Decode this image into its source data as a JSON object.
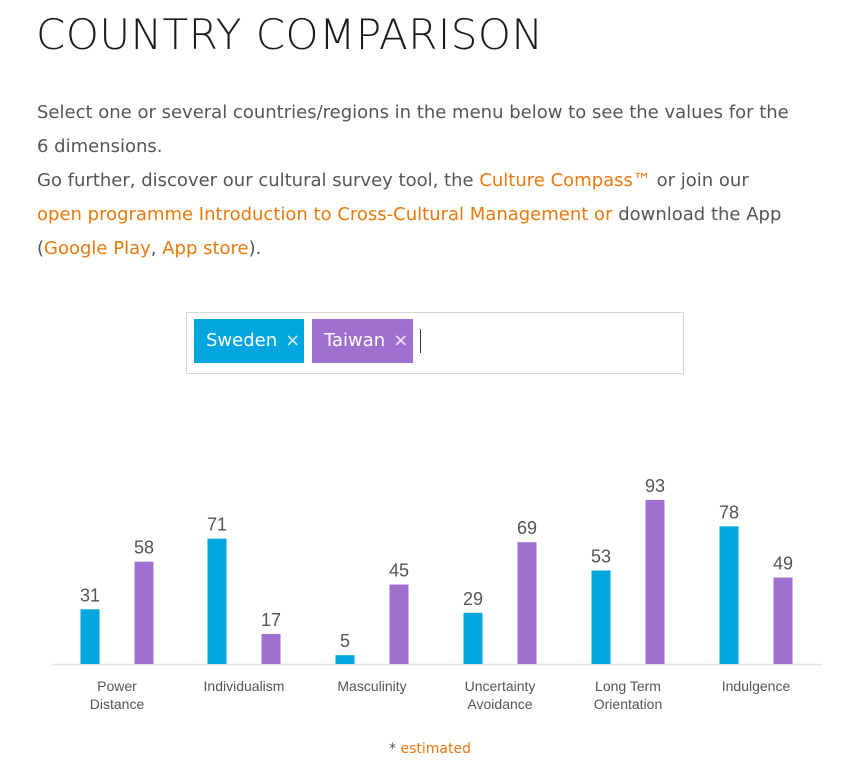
{
  "page": {
    "title": "COUNTRY COMPARISON",
    "intro_line1": "Select one or several countries/regions in the menu below to see the values for the 6 dimensions.",
    "intro_line2_pre": "Go further, discover our cultural survey tool, the ",
    "culture_compass_link": "Culture Compass™",
    "intro_or_join": " or join our ",
    "programme_link": "open programme Introduction to Cross-Cultural Management or",
    "intro_download": " download the App (",
    "google_play_link": "Google Play",
    "comma": ", ",
    "app_store_link": "App store",
    "close_paren": ")."
  },
  "selector": {
    "tags": [
      {
        "label": "Sweden",
        "remove": "×",
        "color": "#00a6dd"
      },
      {
        "label": "Taiwan",
        "remove": "×",
        "color": "#9f70cf"
      }
    ]
  },
  "chart_data": {
    "type": "bar",
    "categories": [
      [
        "Power",
        "Distance"
      ],
      [
        "Individualism"
      ],
      [
        "Masculinity"
      ],
      [
        "Uncertainty",
        "Avoidance"
      ],
      [
        "Long Term",
        "Orientation"
      ],
      [
        "Indulgence"
      ]
    ],
    "series": [
      {
        "name": "Sweden",
        "color": "#00a6dd",
        "values": [
          31,
          71,
          5,
          29,
          53,
          78
        ]
      },
      {
        "name": "Taiwan",
        "color": "#9f70cf",
        "values": [
          58,
          17,
          45,
          69,
          93,
          49
        ]
      }
    ],
    "ylim": [
      0,
      100
    ],
    "grid": false
  },
  "footnote": {
    "star": "* ",
    "text": "estimated"
  }
}
